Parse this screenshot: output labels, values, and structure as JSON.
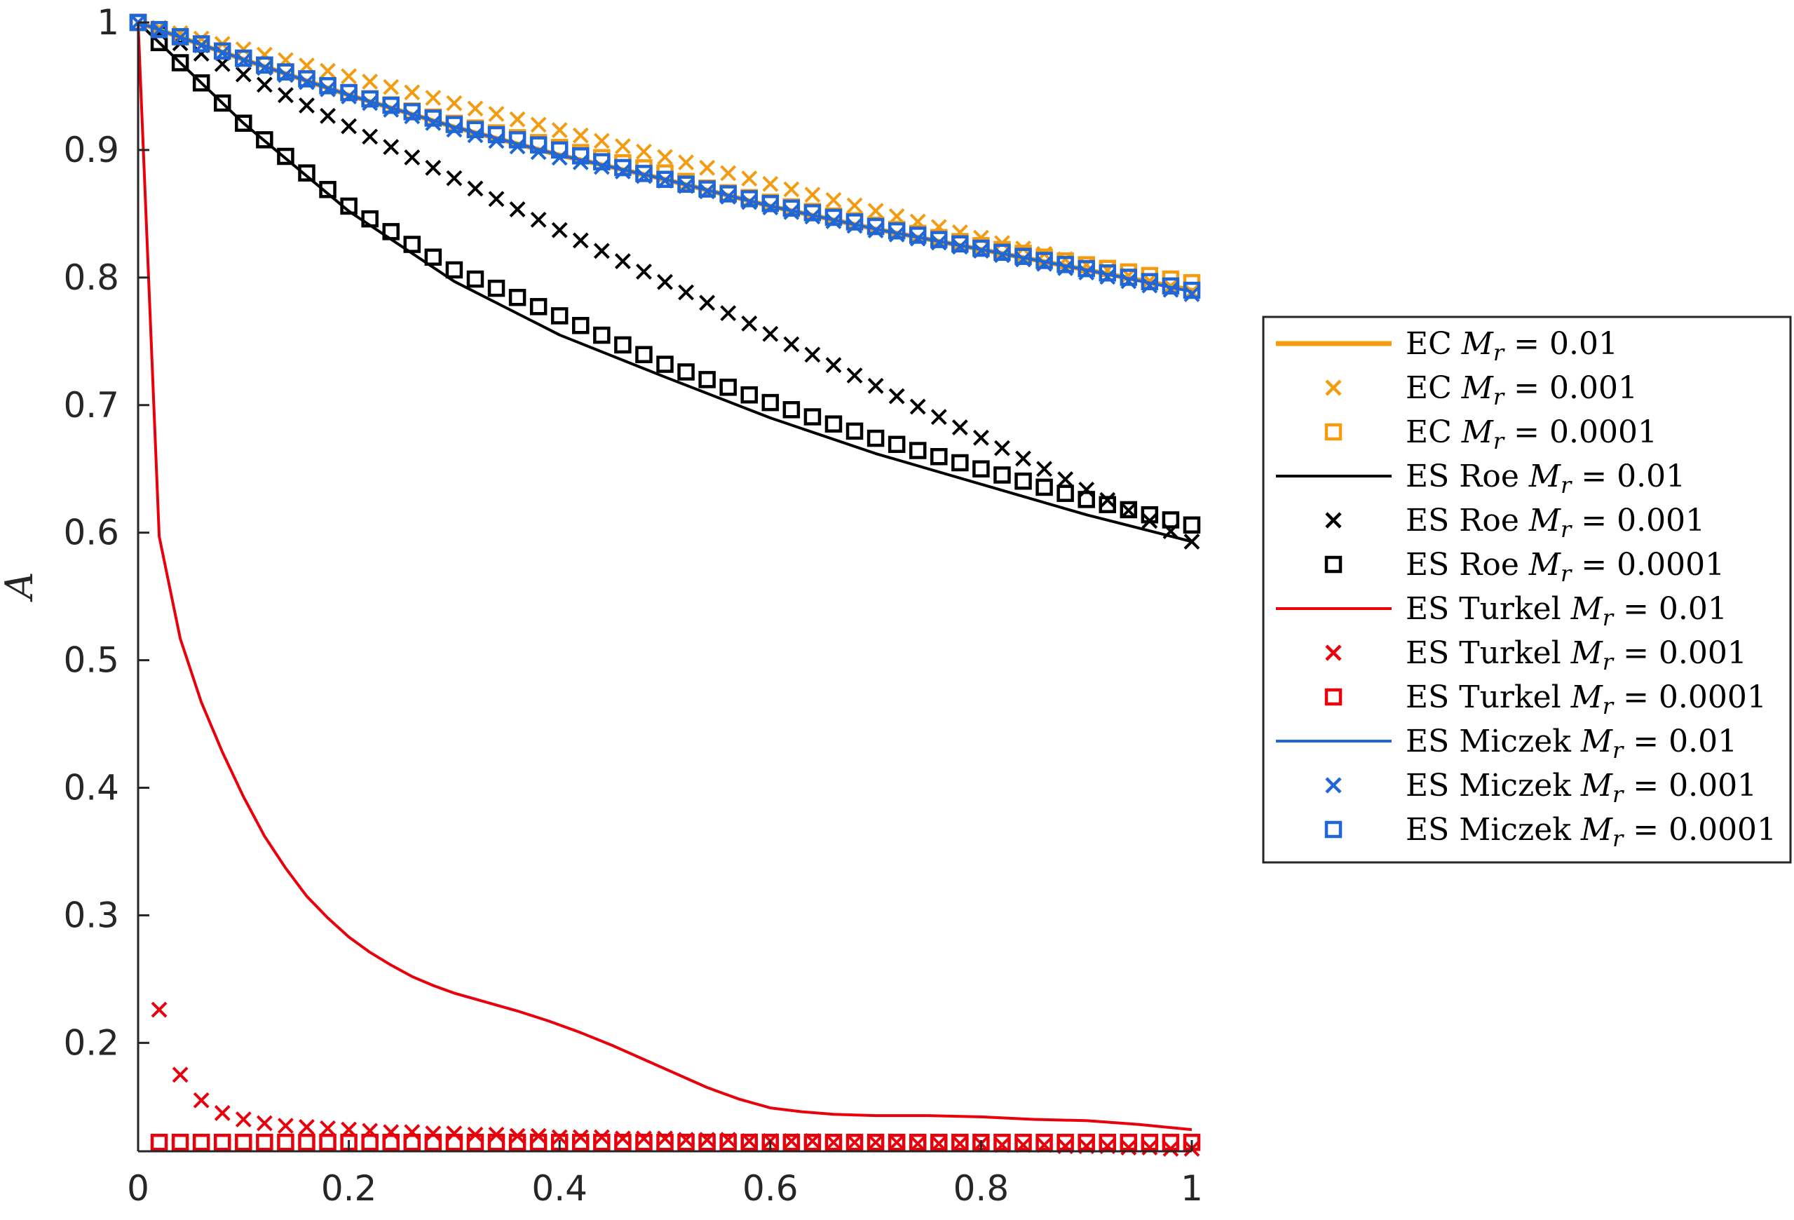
{
  "chart_data": {
    "type": "line",
    "title": "",
    "xlabel": "",
    "ylabel": "A",
    "xlim": [
      0,
      1
    ],
    "ylim": [
      0.115,
      1
    ],
    "xticks": [
      0,
      0.2,
      0.4,
      0.6,
      0.8,
      1
    ],
    "xtick_labels": [
      "0",
      "0.2",
      "0.4",
      "0.6",
      "0.8",
      "1"
    ],
    "yticks": [
      0.2,
      0.3,
      0.4,
      0.5,
      0.6,
      0.7,
      0.8,
      0.9,
      1
    ],
    "ytick_labels": [
      "0.2",
      "0.3",
      "0.4",
      "0.5",
      "0.6",
      "0.7",
      "0.8",
      "0.9",
      "1"
    ],
    "grid": false,
    "legend_position": "right",
    "colors": {
      "EC": "#f39c12",
      "ES Roe": "#000000",
      "ES Turkel": "#e8000b",
      "ES Miczek": "#1f66d6"
    },
    "series": [
      {
        "group": "EC",
        "name": "EC Mr = 0.01",
        "legend": {
          "pre": "EC ",
          "post": " = 0.01"
        },
        "marker": "line",
        "color": "#f39c12",
        "x": [
          0,
          0.1,
          0.2,
          0.3,
          0.4,
          0.5,
          0.6,
          0.7,
          0.8,
          0.9,
          1
        ],
        "y": [
          1,
          0.971,
          0.943,
          0.918,
          0.896,
          0.877,
          0.856,
          0.838,
          0.822,
          0.806,
          0.79
        ]
      },
      {
        "group": "EC",
        "name": "EC Mr = 0.001",
        "legend": {
          "pre": "EC ",
          "post": " = 0.001"
        },
        "marker": "x",
        "color": "#f39c12",
        "x": [
          0,
          1
        ],
        "y": [
          1,
          0.789
        ]
      },
      {
        "group": "EC",
        "name": "EC Mr = 0.0001",
        "legend": {
          "pre": "EC ",
          "post": " = 0.0001"
        },
        "marker": "square",
        "color": "#f39c12",
        "x": [
          0,
          0.1,
          0.2,
          0.3,
          0.4,
          0.47,
          0.5,
          0.53,
          0.6,
          0.7,
          0.8,
          0.9,
          1
        ],
        "y": [
          1,
          0.972,
          0.945,
          0.921,
          0.902,
          0.888,
          0.882,
          0.872,
          0.859,
          0.841,
          0.825,
          0.81,
          0.796
        ]
      },
      {
        "group": "ES Roe",
        "name": "ES Roe Mr = 0.01",
        "legend": {
          "pre": "ES Roe ",
          "post": " = 0.01"
        },
        "marker": "line",
        "color": "#000000",
        "x": [
          0,
          0.1,
          0.2,
          0.3,
          0.4,
          0.5,
          0.6,
          0.7,
          0.8,
          0.9,
          1
        ],
        "y": [
          1,
          0.921,
          0.852,
          0.797,
          0.755,
          0.722,
          0.69,
          0.662,
          0.638,
          0.614,
          0.593
        ]
      },
      {
        "group": "ES Roe",
        "name": "ES Roe Mr = 0.001",
        "legend": {
          "pre": "ES Roe ",
          "post": " = 0.001"
        },
        "marker": "x",
        "color": "#000000",
        "x": [
          0,
          1
        ],
        "y": [
          1,
          0.593
        ]
      },
      {
        "group": "ES Roe",
        "name": "ES Roe Mr = 0.0001",
        "legend": {
          "pre": "ES Roe ",
          "post": " = 0.0001"
        },
        "marker": "square",
        "color": "#000000",
        "x": [
          0,
          0.1,
          0.2,
          0.3,
          0.4,
          0.5,
          0.6,
          0.7,
          0.8,
          0.9,
          1
        ],
        "y": [
          1,
          0.921,
          0.856,
          0.806,
          0.77,
          0.732,
          0.702,
          0.674,
          0.65,
          0.626,
          0.606
        ]
      },
      {
        "group": "ES Turkel",
        "name": "ES Turkel Mr = 0.01",
        "legend": {
          "pre": "ES Turkel ",
          "post": " = 0.01"
        },
        "marker": "line",
        "color": "#e8000b",
        "x": [
          0,
          0.02,
          0.04,
          0.06,
          0.08,
          0.1,
          0.12,
          0.14,
          0.16,
          0.18,
          0.2,
          0.22,
          0.24,
          0.26,
          0.28,
          0.3,
          0.33,
          0.36,
          0.39,
          0.42,
          0.45,
          0.48,
          0.51,
          0.54,
          0.57,
          0.6,
          0.63,
          0.66,
          0.7,
          0.75,
          0.8,
          0.85,
          0.9,
          0.95,
          1
        ],
        "y": [
          1,
          0.597,
          0.517,
          0.467,
          0.428,
          0.393,
          0.362,
          0.337,
          0.315,
          0.298,
          0.283,
          0.271,
          0.261,
          0.252,
          0.245,
          0.239,
          0.232,
          0.225,
          0.217,
          0.208,
          0.198,
          0.187,
          0.176,
          0.165,
          0.156,
          0.149,
          0.146,
          0.144,
          0.143,
          0.143,
          0.142,
          0.14,
          0.139,
          0.136,
          0.132
        ]
      },
      {
        "group": "ES Turkel",
        "name": "ES Turkel Mr = 0.001",
        "legend": {
          "pre": "ES Turkel ",
          "post": " = 0.001"
        },
        "marker": "x",
        "color": "#e8000b",
        "x": [
          0.02,
          0.04,
          0.06,
          0.08,
          0.1,
          0.12,
          0.14,
          0.16,
          0.18,
          0.2,
          0.22,
          0.24,
          0.26,
          0.28,
          0.3,
          0.32,
          0.34,
          0.36,
          0.38,
          0.4,
          0.42,
          0.44,
          0.46,
          0.48,
          0.5,
          0.52,
          0.54,
          0.56,
          0.58,
          0.6,
          0.62,
          0.64,
          0.66,
          0.68,
          0.7,
          0.72,
          0.74,
          0.76,
          0.78,
          0.8,
          0.82,
          0.84,
          0.86,
          0.88,
          0.9,
          0.92,
          0.94,
          0.96,
          0.98,
          1
        ],
        "y": [
          0.226,
          0.175,
          0.155,
          0.145,
          0.14,
          0.137,
          0.135,
          0.134,
          0.133,
          0.132,
          0.131,
          0.13,
          0.13,
          0.129,
          0.129,
          0.128,
          0.128,
          0.127,
          0.127,
          0.126,
          0.126,
          0.126,
          0.125,
          0.125,
          0.125,
          0.124,
          0.124,
          0.124,
          0.123,
          0.123,
          0.123,
          0.123,
          0.122,
          0.122,
          0.122,
          0.122,
          0.121,
          0.121,
          0.121,
          0.121,
          0.12,
          0.12,
          0.12,
          0.119,
          0.119,
          0.119,
          0.118,
          0.118,
          0.117,
          0.117
        ]
      },
      {
        "group": "ES Turkel",
        "name": "ES Turkel Mr = 0.0001",
        "legend": {
          "pre": "ES Turkel ",
          "post": " = 0.0001"
        },
        "marker": "square",
        "color": "#e8000b",
        "x": [
          0.02,
          0.04,
          0.06,
          0.08,
          0.1,
          0.12,
          0.14,
          0.16,
          0.18,
          0.2,
          0.22,
          0.24,
          0.26,
          0.28,
          0.3,
          0.32,
          0.34,
          0.36,
          0.38,
          0.4,
          0.42,
          0.44,
          0.46,
          0.48,
          0.5,
          0.52,
          0.54,
          0.56,
          0.58,
          0.6,
          0.62,
          0.64,
          0.66,
          0.68,
          0.7,
          0.72,
          0.74,
          0.76,
          0.78,
          0.8,
          0.82,
          0.84,
          0.86,
          0.88,
          0.9,
          0.92,
          0.94,
          0.96,
          0.98,
          1
        ],
        "y": [
          0.122,
          0.122,
          0.122,
          0.122,
          0.122,
          0.122,
          0.122,
          0.122,
          0.122,
          0.122,
          0.122,
          0.122,
          0.122,
          0.122,
          0.122,
          0.122,
          0.122,
          0.122,
          0.122,
          0.122,
          0.122,
          0.122,
          0.122,
          0.122,
          0.122,
          0.122,
          0.122,
          0.122,
          0.122,
          0.122,
          0.122,
          0.122,
          0.122,
          0.122,
          0.122,
          0.122,
          0.122,
          0.122,
          0.122,
          0.122,
          0.122,
          0.122,
          0.122,
          0.122,
          0.122,
          0.122,
          0.122,
          0.122,
          0.122,
          0.122
        ]
      },
      {
        "group": "ES Miczek",
        "name": "ES Miczek Mr = 0.01",
        "legend": {
          "pre": "ES Miczek ",
          "post": " = 0.01"
        },
        "marker": "line",
        "color": "#1f66d6",
        "x": [
          0,
          0.1,
          0.2,
          0.3,
          0.4,
          0.5,
          0.6,
          0.7,
          0.8,
          0.9,
          1
        ],
        "y": [
          1,
          0.971,
          0.943,
          0.918,
          0.896,
          0.877,
          0.856,
          0.838,
          0.822,
          0.806,
          0.789
        ]
      },
      {
        "group": "ES Miczek",
        "name": "ES Miczek Mr = 0.001",
        "legend": {
          "pre": "ES Miczek ",
          "post": " = 0.001"
        },
        "marker": "x",
        "color": "#1f66d6",
        "x": [
          0,
          0.1,
          0.2,
          0.3,
          0.4,
          0.5,
          0.6,
          0.7,
          0.8,
          0.9,
          1
        ],
        "y": [
          1,
          0.97,
          0.942,
          0.916,
          0.894,
          0.876,
          0.855,
          0.837,
          0.821,
          0.804,
          0.787
        ]
      },
      {
        "group": "ES Miczek",
        "name": "ES Miczek Mr = 0.0001",
        "legend": {
          "pre": "ES Miczek ",
          "post": " = 0.0001"
        },
        "marker": "square",
        "color": "#1f66d6",
        "x": [
          0,
          0.1,
          0.2,
          0.3,
          0.4,
          0.5,
          0.6,
          0.7,
          0.8,
          0.9,
          1
        ],
        "y": [
          1,
          0.972,
          0.945,
          0.92,
          0.9,
          0.877,
          0.858,
          0.84,
          0.823,
          0.807,
          0.79
        ]
      }
    ]
  }
}
